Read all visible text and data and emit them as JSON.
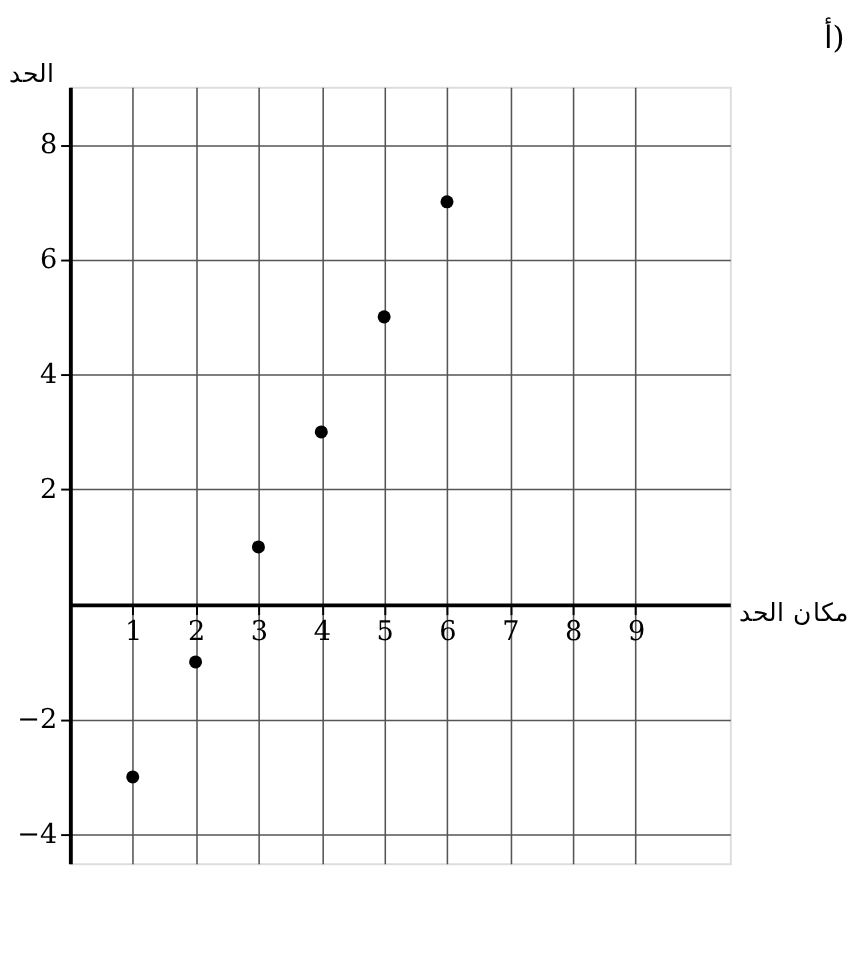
{
  "chart_data": {
    "type": "scatter",
    "title": "أ)",
    "xlabel": "مكان الحد",
    "ylabel": "الحد",
    "x": [
      1,
      2,
      3,
      4,
      5,
      6
    ],
    "series": [
      {
        "color": "#000000",
        "values": [
          -3,
          -1,
          1,
          3,
          5,
          7
        ]
      }
    ],
    "xlim": [
      0,
      10.5
    ],
    "ylim": [
      -4.5,
      9
    ],
    "xticks": [
      1,
      2,
      3,
      4,
      5,
      6,
      7,
      8,
      9
    ],
    "yticks": [
      -4,
      -2,
      2,
      4,
      6,
      8
    ],
    "grid": true,
    "marker": "circle",
    "legend": false
  }
}
